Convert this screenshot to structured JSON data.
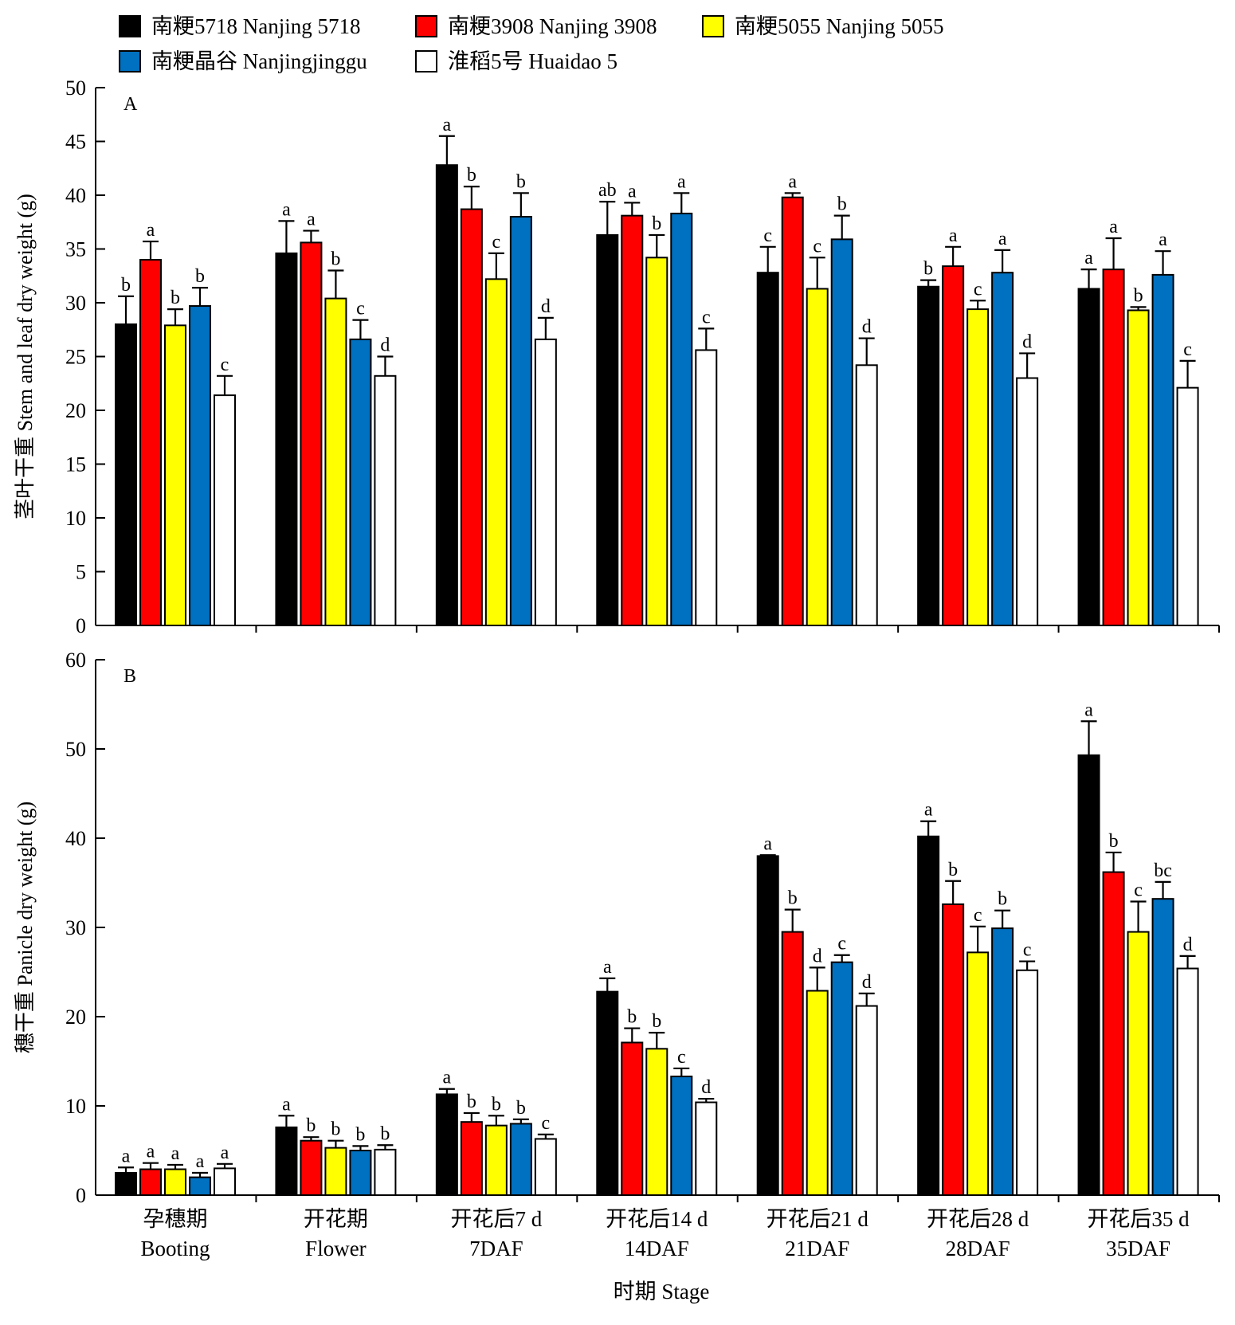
{
  "legend": {
    "items": [
      {
        "label": "南粳5718 Nanjing 5718",
        "color": "#000000"
      },
      {
        "label": "南粳3908 Nanjing 3908",
        "color": "#ff0000"
      },
      {
        "label": "南粳5055 Nanjing 5055",
        "color": "#ffff00"
      },
      {
        "label": "南粳晶谷 Nanjingjinggu",
        "color": "#0070c0"
      },
      {
        "label": "淮稻5号 Huaidao 5",
        "color": "#ffffff"
      }
    ]
  },
  "x_axis": {
    "title": "时期 Stage",
    "categories_cn": [
      "孕穗期",
      "开花期",
      "开花后7 d",
      "开花后14 d",
      "开花后21 d",
      "开花后28 d",
      "开花后35 d"
    ],
    "categories_en": [
      "Booting",
      "Flower",
      "7DAF",
      "14DAF",
      "21DAF",
      "28DAF",
      "35DAF"
    ]
  },
  "chart_data": [
    {
      "type": "bar",
      "panel": "A",
      "ylabel": "茎叶干重 Stem and leaf dry weight (g)",
      "ylim": [
        0,
        50
      ],
      "yticks": [
        0,
        5,
        10,
        15,
        20,
        25,
        30,
        35,
        40,
        45,
        50
      ],
      "categories": [
        "孕穗期 Booting",
        "开花期 Flower",
        "开花后7 d 7DAF",
        "开花后14 d 14DAF",
        "开花后21 d 21DAF",
        "开花后28 d 28DAF",
        "开花后35 d 35DAF"
      ],
      "series": [
        {
          "name": "南粳5718 Nanjing 5718",
          "values": [
            28.0,
            34.6,
            42.8,
            36.3,
            32.8,
            31.5,
            31.3
          ],
          "errors": [
            2.6,
            3.0,
            2.7,
            3.1,
            2.4,
            0.6,
            1.8
          ],
          "letters": [
            "b",
            "a",
            "a",
            "ab",
            "c",
            "b",
            "a"
          ]
        },
        {
          "name": "南粳3908 Nanjing 3908",
          "values": [
            34.0,
            35.6,
            38.7,
            38.1,
            39.8,
            33.4,
            33.1
          ],
          "errors": [
            1.7,
            1.1,
            2.1,
            1.2,
            0.4,
            1.8,
            2.9
          ],
          "letters": [
            "a",
            "a",
            "b",
            "a",
            "a",
            "a",
            "a"
          ]
        },
        {
          "name": "南粳5055 Nanjing 5055",
          "values": [
            27.9,
            30.4,
            32.2,
            34.2,
            31.3,
            29.4,
            29.3
          ],
          "errors": [
            1.5,
            2.6,
            2.4,
            2.1,
            2.9,
            0.8,
            0.3
          ],
          "letters": [
            "b",
            "b",
            "c",
            "b",
            "c",
            "c",
            "b"
          ]
        },
        {
          "name": "南粳晶谷 Nanjingjinggu",
          "values": [
            29.7,
            26.6,
            38.0,
            38.3,
            35.9,
            32.8,
            32.6
          ],
          "errors": [
            1.7,
            1.8,
            2.2,
            1.9,
            2.2,
            2.1,
            2.2
          ],
          "letters": [
            "b",
            "c",
            "b",
            "a",
            "b",
            "a",
            "a"
          ]
        },
        {
          "name": "淮稻5号 Huaidao 5",
          "values": [
            21.4,
            23.2,
            26.6,
            25.6,
            24.2,
            23.0,
            22.1
          ],
          "errors": [
            1.8,
            1.8,
            2.0,
            2.0,
            2.5,
            2.3,
            2.5
          ],
          "letters": [
            "c",
            "d",
            "d",
            "c",
            "d",
            "d",
            "c"
          ]
        }
      ]
    },
    {
      "type": "bar",
      "panel": "B",
      "ylabel": "穗干重 Panicle dry weight (g)",
      "ylim": [
        0,
        60
      ],
      "yticks": [
        0,
        10,
        20,
        30,
        40,
        50,
        60
      ],
      "categories": [
        "孕穗期 Booting",
        "开花期 Flower",
        "开花后7 d 7DAF",
        "开花后14 d 14DAF",
        "开花后21 d 21DAF",
        "开花后28 d 28DAF",
        "开花后35 d 35DAF"
      ],
      "series": [
        {
          "name": "南粳5718 Nanjing 5718",
          "values": [
            2.5,
            7.6,
            11.3,
            22.8,
            38.0,
            40.2,
            49.3
          ],
          "errors": [
            0.6,
            1.3,
            0.6,
            1.5,
            0.1,
            1.7,
            3.8
          ],
          "letters": [
            "a",
            "a",
            "a",
            "a",
            "a",
            "a",
            "a"
          ]
        },
        {
          "name": "南粳3908 Nanjing 3908",
          "values": [
            2.9,
            6.1,
            8.2,
            17.1,
            29.5,
            32.6,
            36.2
          ],
          "errors": [
            0.7,
            0.4,
            1.0,
            1.6,
            2.5,
            2.6,
            2.2
          ],
          "letters": [
            "a",
            "b",
            "b",
            "b",
            "b",
            "b",
            "b"
          ]
        },
        {
          "name": "南粳5055 Nanjing 5055",
          "values": [
            2.9,
            5.3,
            7.8,
            16.4,
            22.9,
            27.2,
            29.5
          ],
          "errors": [
            0.5,
            0.8,
            1.1,
            1.8,
            2.6,
            2.9,
            3.4
          ],
          "letters": [
            "a",
            "b",
            "b",
            "b",
            "d",
            "c",
            "c"
          ]
        },
        {
          "name": "南粳晶谷 Nanjingjinggu",
          "values": [
            2.0,
            5.0,
            8.0,
            13.3,
            26.1,
            29.9,
            33.2
          ],
          "errors": [
            0.5,
            0.5,
            0.5,
            0.9,
            0.8,
            2.0,
            1.9
          ],
          "letters": [
            "a",
            "b",
            "b",
            "c",
            "c",
            "b",
            "bc"
          ]
        },
        {
          "name": "淮稻5号 Huaidao 5",
          "values": [
            3.0,
            5.1,
            6.3,
            10.4,
            21.2,
            25.2,
            25.4
          ],
          "errors": [
            0.5,
            0.5,
            0.5,
            0.4,
            1.4,
            1.0,
            1.4
          ],
          "letters": [
            "a",
            "b",
            "c",
            "d",
            "d",
            "c",
            "d"
          ]
        }
      ]
    }
  ]
}
